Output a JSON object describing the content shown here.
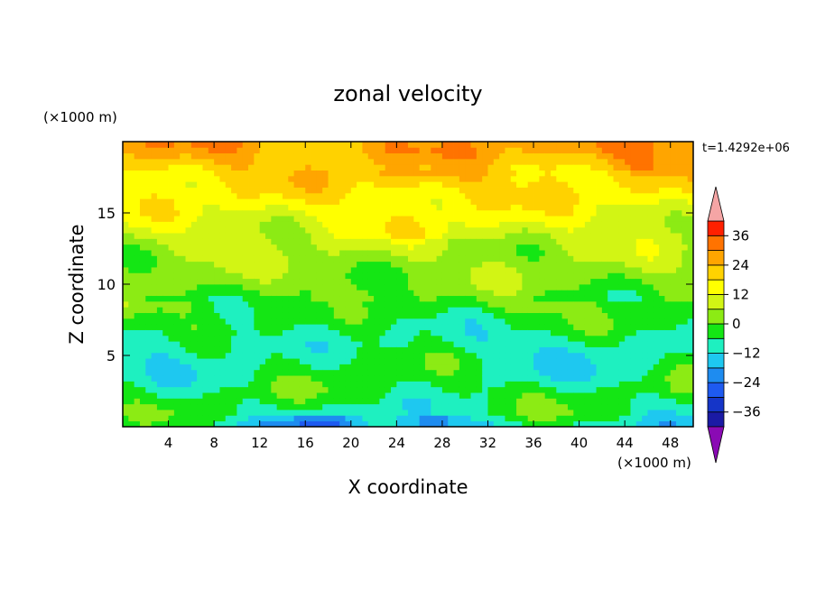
{
  "chart_data": {
    "type": "heatmap",
    "title": "zonal velocity",
    "xlabel": "X coordinate",
    "ylabel": "Z coordinate",
    "x_unit_label": "(×1000 m)",
    "y_unit_label": "(×1000 m)",
    "time_label": "t=1.4292e+06",
    "xlim": [
      0,
      50
    ],
    "ylim": [
      0,
      20
    ],
    "x_ticks": [
      4,
      8,
      12,
      16,
      20,
      24,
      28,
      32,
      36,
      40,
      44,
      48
    ],
    "y_ticks": [
      5,
      10,
      15
    ],
    "grid": false,
    "colorbar": {
      "levels": [
        -42,
        -36,
        -30,
        -24,
        -18,
        -12,
        -6,
        0,
        6,
        12,
        18,
        24,
        30,
        36,
        42
      ],
      "labels": [
        "36",
        "24",
        "12",
        "0",
        "−12",
        "−24",
        "−36"
      ],
      "label_values": [
        36,
        24,
        12,
        0,
        -12,
        -24,
        -36
      ],
      "colors": [
        "#5a0a8f",
        "#1a1aa5",
        "#1535c8",
        "#1e5af0",
        "#1e8cf0",
        "#1ec8f0",
        "#1ef0c0",
        "#14e614",
        "#8ceb14",
        "#d2f514",
        "#ffff00",
        "#ffd200",
        "#ffa500",
        "#ff7300",
        "#ff2000",
        "#ff0000"
      ],
      "under_color": "#8a0ab4",
      "over_color": "#f5a5a5"
    },
    "field_description_profile": {
      "z": [
        0.0,
        1.0,
        2.5,
        4.0,
        6.0,
        8.0,
        10.0,
        12.0,
        14.0,
        15.5,
        17.0,
        18.5,
        19.5
      ],
      "u": [
        -12.0,
        -6.0,
        -4.0,
        -6.0,
        -8.0,
        -3.0,
        2.0,
        5.0,
        10.0,
        14.0,
        18.0,
        23.0,
        27.0
      ]
    }
  }
}
